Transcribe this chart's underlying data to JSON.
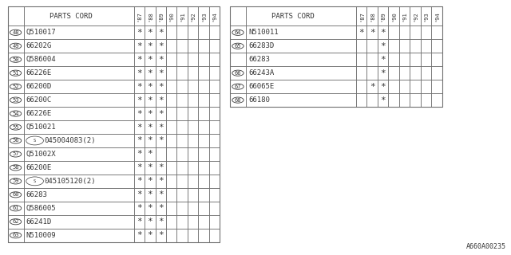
{
  "table1": {
    "rows": [
      {
        "num": "48",
        "part": "Q510017",
        "marks": [
          1,
          2,
          3
        ],
        "special": false
      },
      {
        "num": "49",
        "part": "66202G",
        "marks": [
          1,
          2,
          3
        ],
        "special": false
      },
      {
        "num": "50",
        "part": "Q586004",
        "marks": [
          1,
          2,
          3
        ],
        "special": false
      },
      {
        "num": "51",
        "part": "66226E",
        "marks": [
          1,
          2,
          3
        ],
        "special": false
      },
      {
        "num": "52",
        "part": "66200D",
        "marks": [
          1,
          2,
          3
        ],
        "special": false
      },
      {
        "num": "53",
        "part": "66200C",
        "marks": [
          1,
          2,
          3
        ],
        "special": false
      },
      {
        "num": "54",
        "part": "66226E",
        "marks": [
          1,
          2,
          3
        ],
        "special": false
      },
      {
        "num": "55",
        "part": "Q510021",
        "marks": [
          1,
          2,
          3
        ],
        "special": false
      },
      {
        "num": "56",
        "part": "045004083(2)",
        "marks": [
          1,
          2,
          3
        ],
        "special": true
      },
      {
        "num": "57",
        "part": "Q51002X",
        "marks": [
          1,
          2
        ],
        "special": false
      },
      {
        "num": "58",
        "part": "66200E",
        "marks": [
          1,
          2,
          3
        ],
        "special": false
      },
      {
        "num": "59",
        "part": "045105120(2)",
        "marks": [
          1,
          2,
          3
        ],
        "special": true
      },
      {
        "num": "60",
        "part": "66283",
        "marks": [
          1,
          2,
          3
        ],
        "special": false
      },
      {
        "num": "61",
        "part": "Q586005",
        "marks": [
          1,
          2,
          3
        ],
        "special": false
      },
      {
        "num": "62",
        "part": "66241D",
        "marks": [
          1,
          2,
          3
        ],
        "special": false
      },
      {
        "num": "63",
        "part": "N510009",
        "marks": [
          1,
          2,
          3
        ],
        "special": false
      }
    ]
  },
  "table2": {
    "rows": [
      {
        "num": "64",
        "part": "N510011",
        "marks": [
          1,
          2,
          3
        ],
        "special": false,
        "subrow": null
      },
      {
        "num": "65",
        "part": "66283D",
        "marks": [
          3
        ],
        "special": false,
        "subrow": "66283",
        "submarks": [
          3
        ]
      },
      {
        "num": "66",
        "part": "66243A",
        "marks": [
          3
        ],
        "special": false,
        "subrow": null
      },
      {
        "num": "67",
        "part": "66065E",
        "marks": [
          2,
          3
        ],
        "special": false,
        "subrow": null
      },
      {
        "num": "68",
        "part": "66180",
        "marks": [
          3
        ],
        "special": false,
        "subrow": null
      }
    ]
  },
  "year_labels": [
    "'87",
    "'88",
    "'89",
    "'90",
    "'91",
    "'92",
    "'93",
    "'94"
  ],
  "bg_color": "#ffffff",
  "line_color": "#707070",
  "text_color": "#383838",
  "font_size": 6.5,
  "footnote": "A660A00235"
}
